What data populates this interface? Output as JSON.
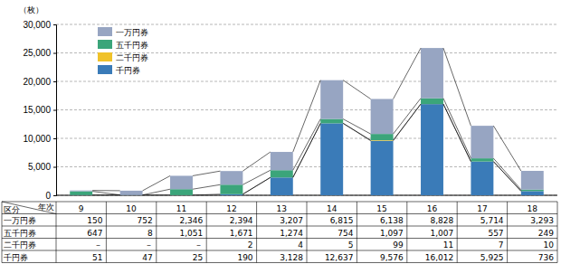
{
  "chart_data": {
    "type": "bar",
    "stacked": true,
    "grid": true,
    "legend": "top-left",
    "data_labels": true,
    "y_label": "（枚）",
    "x_label": "年次",
    "row_header": "区分",
    "categories": [
      "9",
      "10",
      "11",
      "12",
      "13",
      "14",
      "15",
      "16",
      "17",
      "18"
    ],
    "ylim": [
      0,
      30000
    ],
    "yticks": [
      0,
      {
        "value": 5000,
        "label": "5,000"
      },
      {
        "value": 10000,
        "label": "10,000"
      },
      {
        "value": 15000,
        "label": "15,000"
      },
      {
        "value": 20000,
        "label": "20,000"
      },
      {
        "value": 25000,
        "label": "25,000"
      },
      {
        "value": 30000,
        "label": "30,000"
      }
    ],
    "series": [
      {
        "name": "一万円券",
        "color": "#97a5c2",
        "values": [
          150,
          752,
          2346,
          2394,
          3207,
          6815,
          6138,
          8828,
          5714,
          3293
        ],
        "value_labels": [
          "150",
          "752",
          "2,346",
          "2,394",
          "3,207",
          "6,815",
          "6,138",
          "8,828",
          "5,714",
          "3,293"
        ]
      },
      {
        "name": "五千円券",
        "color": "#3ba57a",
        "values": [
          647,
          8,
          1051,
          1671,
          1274,
          754,
          1097,
          1007,
          557,
          249
        ],
        "value_labels": [
          "647",
          "8",
          "1,051",
          "1,671",
          "1,274",
          "754",
          "1,097",
          "1,007",
          "557",
          "249"
        ]
      },
      {
        "name": "二千円券",
        "color": "#f0c22a",
        "values": [
          null,
          null,
          null,
          2,
          4,
          5,
          99,
          11,
          7,
          10
        ],
        "value_labels": [
          "－",
          "－",
          "－",
          "2",
          "4",
          "5",
          "99",
          "11",
          "7",
          "10"
        ]
      },
      {
        "name": "千円券",
        "color": "#3a7bb8",
        "values": [
          51,
          47,
          25,
          190,
          3128,
          12637,
          9576,
          16012,
          5925,
          736
        ],
        "value_labels": [
          "51",
          "47",
          "25",
          "190",
          "3,128",
          "12,637",
          "9,576",
          "16,012",
          "5,925",
          "736"
        ]
      }
    ]
  }
}
